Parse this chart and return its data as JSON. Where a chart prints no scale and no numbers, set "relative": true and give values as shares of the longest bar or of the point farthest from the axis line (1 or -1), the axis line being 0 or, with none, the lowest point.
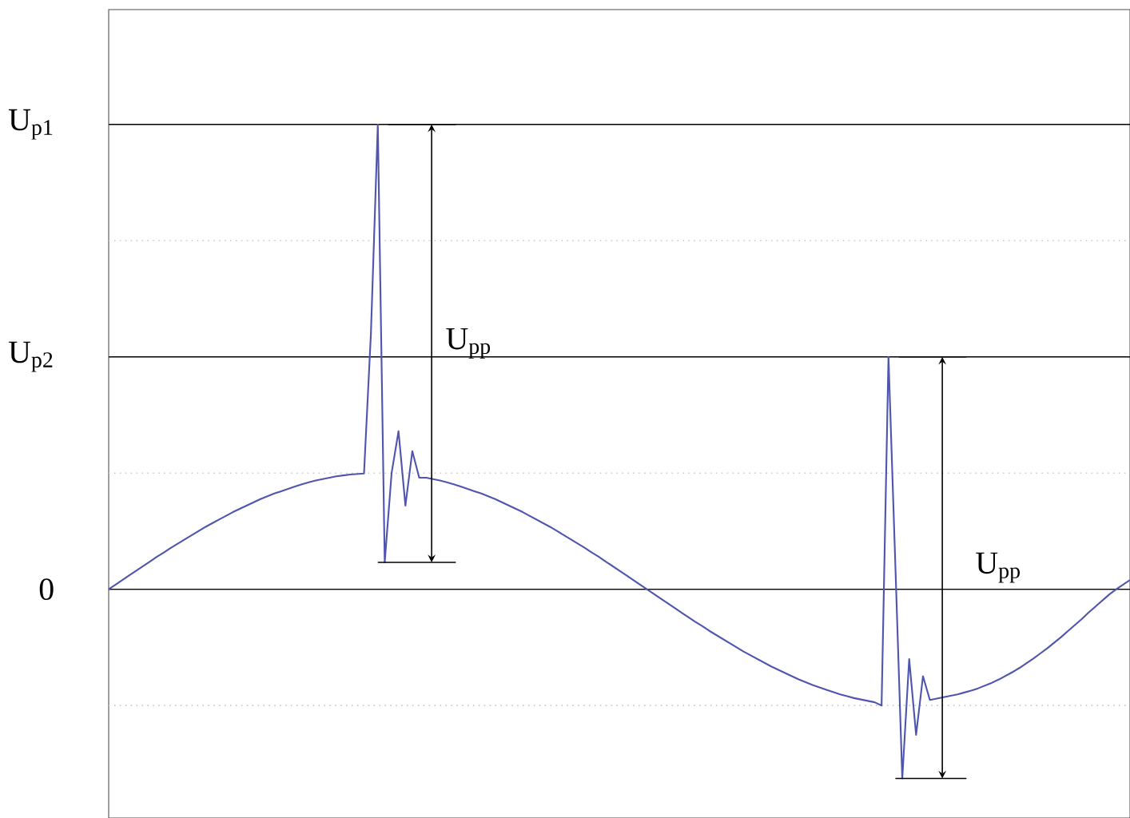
{
  "chart_data": {
    "type": "line",
    "relative": true,
    "color": "#5055b0",
    "tick_labels": false,
    "categories": [
      null,
      null,
      null,
      null,
      null,
      null,
      null,
      null,
      null,
      null,
      null,
      null,
      null,
      null,
      null,
      null,
      null,
      null,
      null,
      null,
      null,
      null,
      null,
      null,
      null,
      null,
      null,
      null,
      null,
      null,
      null,
      null,
      null,
      null,
      null,
      null,
      null,
      null,
      null,
      null,
      null,
      null,
      null,
      null,
      null,
      null,
      null,
      null,
      null,
      null,
      null,
      null,
      null,
      null,
      null,
      null,
      null,
      null,
      null,
      null,
      null,
      null,
      null,
      null,
      null,
      null,
      null,
      null,
      null,
      null,
      null,
      null,
      null,
      null,
      null,
      null,
      null,
      null,
      null,
      null,
      null,
      null,
      null,
      null,
      null,
      null,
      null,
      null,
      null,
      null,
      null,
      null,
      null,
      null,
      null,
      null,
      null,
      null,
      null,
      null,
      null,
      null,
      null,
      null,
      null,
      null,
      null,
      null,
      null,
      null,
      null,
      null,
      null,
      null,
      null,
      null,
      null,
      null,
      null,
      null,
      null,
      null,
      null,
      null,
      null,
      null,
      null,
      null,
      null,
      null,
      null,
      null,
      null,
      null,
      null,
      null,
      null,
      null,
      null,
      null,
      null,
      null,
      null,
      null,
      null,
      null,
      null,
      null,
      null
    ],
    "values": [
      0,
      0.01,
      0.02,
      0.03,
      0.04,
      0.05,
      0.06,
      0.07,
      0.079,
      0.089,
      0.098,
      0.107,
      0.116,
      0.125,
      0.134,
      0.142,
      0.15,
      0.158,
      0.166,
      0.173,
      0.18,
      0.187,
      0.194,
      0.2,
      0.206,
      0.211,
      0.216,
      0.221,
      0.226,
      0.23,
      0.234,
      0.237,
      0.24,
      0.243,
      0.245,
      0.247,
      0.248,
      0.249,
      0.55,
      1.0,
      0.058,
      0.25,
      0.34,
      0.18,
      0.297,
      0.24,
      0.24,
      0.237,
      0.234,
      0.23,
      0.226,
      0.221,
      0.216,
      0.211,
      0.206,
      0.2,
      0.194,
      0.187,
      0.18,
      0.173,
      0.166,
      0.158,
      0.15,
      0.142,
      0.134,
      0.125,
      0.116,
      0.107,
      0.098,
      0.089,
      0.079,
      0.07,
      0.06,
      0.05,
      0.04,
      0.03,
      0.02,
      0.01,
      0,
      -0.01,
      -0.02,
      -0.03,
      -0.04,
      -0.05,
      -0.06,
      -0.07,
      -0.079,
      -0.089,
      -0.098,
      -0.107,
      -0.116,
      -0.125,
      -0.134,
      -0.142,
      -0.15,
      -0.158,
      -0.166,
      -0.173,
      -0.18,
      -0.187,
      -0.194,
      -0.2,
      -0.206,
      -0.211,
      -0.216,
      -0.221,
      -0.226,
      -0.23,
      -0.234,
      -0.237,
      -0.24,
      -0.243,
      -0.25,
      0.5,
      0.05,
      -0.407,
      -0.15,
      -0.313,
      -0.187,
      -0.238,
      -0.235,
      -0.232,
      -0.229,
      -0.226,
      -0.222,
      -0.218,
      -0.213,
      -0.207,
      -0.201,
      -0.194,
      -0.186,
      -0.178,
      -0.169,
      -0.159,
      -0.149,
      -0.138,
      -0.127,
      -0.115,
      -0.103,
      -0.09,
      -0.077,
      -0.064,
      -0.05,
      -0.037,
      -0.024,
      -0.011,
      0,
      0.01,
      0.02
    ],
    "ref_lines": [
      {
        "axis": "y",
        "value": 1.0,
        "label": "U$_{p1}$",
        "color": "#000000",
        "line_style": "solid"
      },
      {
        "axis": "y",
        "value": 0.5,
        "label": "U$_{p2}$",
        "color": "#000000",
        "line_style": "solid"
      },
      {
        "axis": "y",
        "value": 0,
        "label": "0",
        "color": "#000000",
        "line_style": "solid"
      },
      {
        "axis": "y",
        "value": 0.75,
        "color": "#c8c8c8",
        "line_style": "dotted"
      },
      {
        "axis": "y",
        "value": 0.25,
        "color": "#c8c8c8",
        "line_style": "dotted"
      },
      {
        "axis": "y",
        "value": -0.25,
        "color": "#c8c8c8",
        "line_style": "dotted"
      }
    ],
    "annotations": [
      "U$_{pp}$",
      "U$_{pp}$"
    ]
  }
}
